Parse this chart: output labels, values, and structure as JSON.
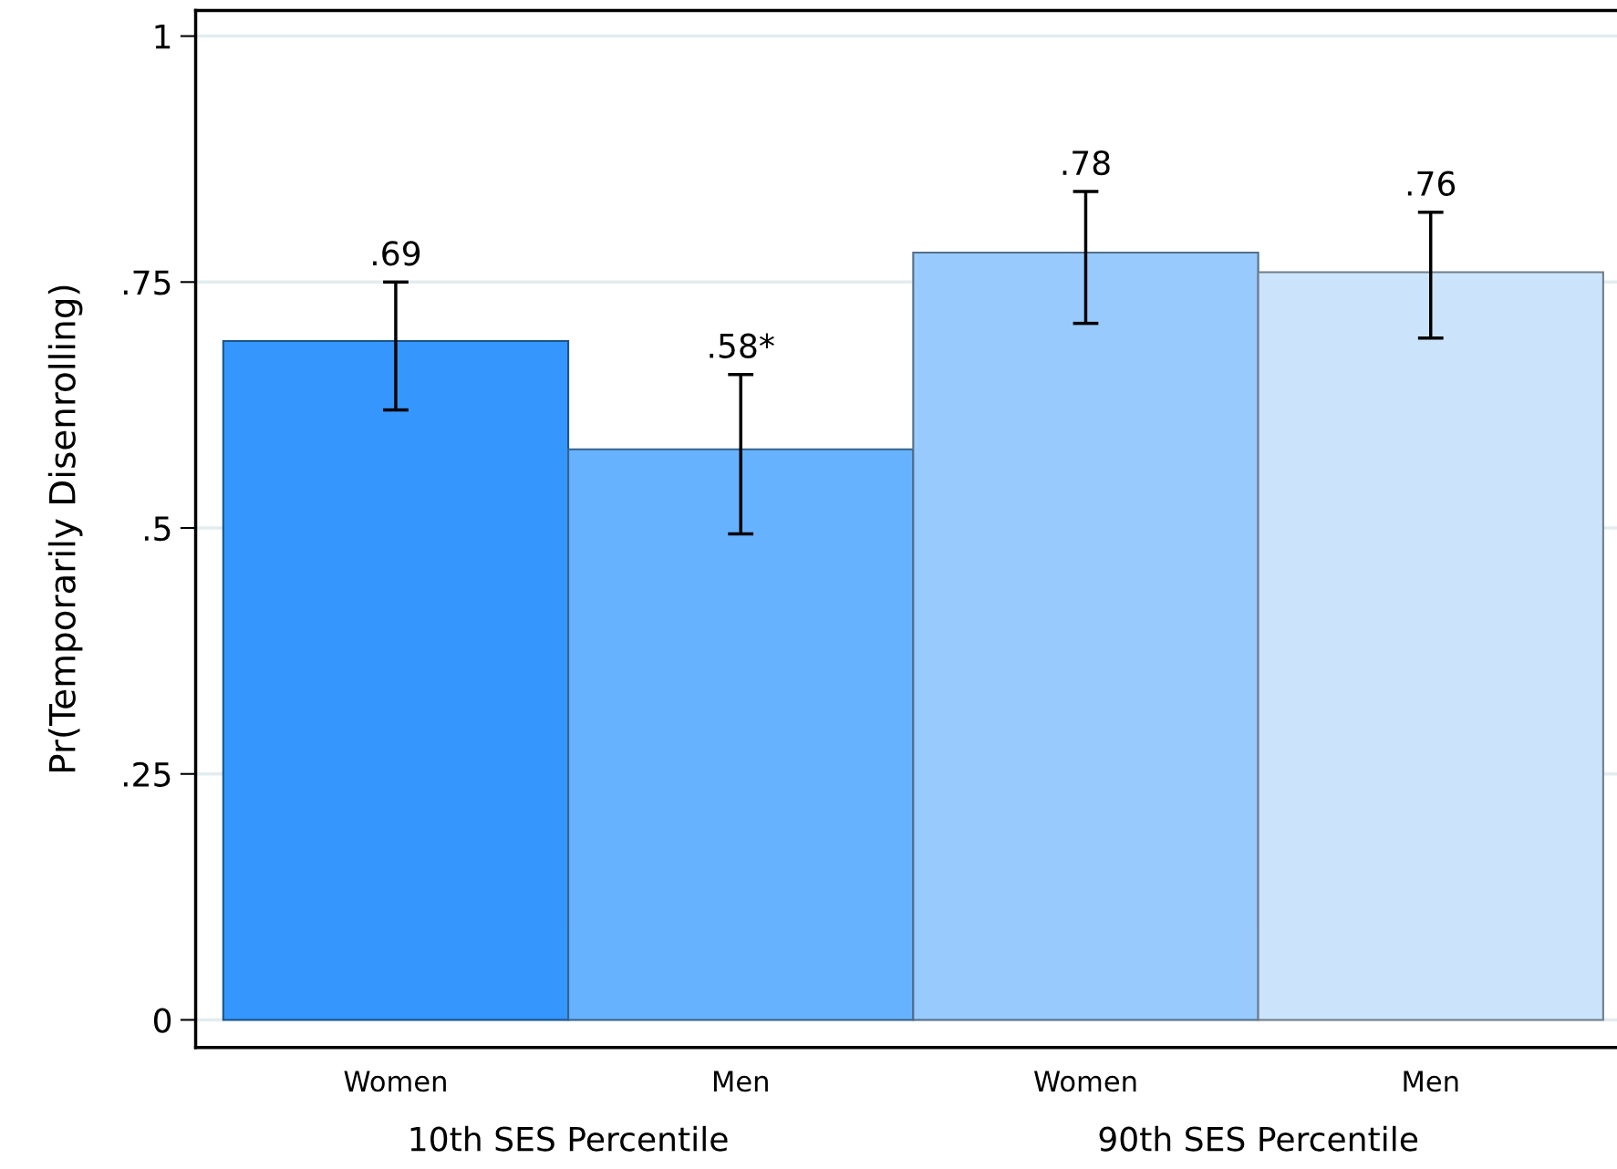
{
  "chart_data": {
    "type": "bar",
    "ylabel": "Pr(Temporarily Disenrolling)",
    "categories": [
      "Women",
      "Men",
      "Women",
      "Men"
    ],
    "values": [
      0.69,
      0.58,
      0.78,
      0.76
    ],
    "colors": [
      "#3597fd",
      "#66b2ff",
      "#99cafd",
      "#cce4fb"
    ],
    "errors": [
      [
        0.62,
        0.75
      ],
      [
        0.494,
        0.656
      ],
      [
        0.708,
        0.842
      ],
      [
        0.693,
        0.821
      ]
    ],
    "value_labels": [
      ".69",
      ".58*",
      ".78",
      ".76"
    ],
    "ylim": [
      -0.028,
      1.026
    ],
    "yticks": [
      {
        "value": 0,
        "label": "0"
      },
      {
        "value": 0.25,
        "label": ".25"
      },
      {
        "value": 0.5,
        "label": ".5"
      },
      {
        "value": 0.75,
        "label": ".75"
      },
      {
        "value": 1,
        "label": "1"
      }
    ],
    "grid": "y",
    "annotations": [
      "10th SES Percentile",
      "90th SES Percentile"
    ]
  }
}
